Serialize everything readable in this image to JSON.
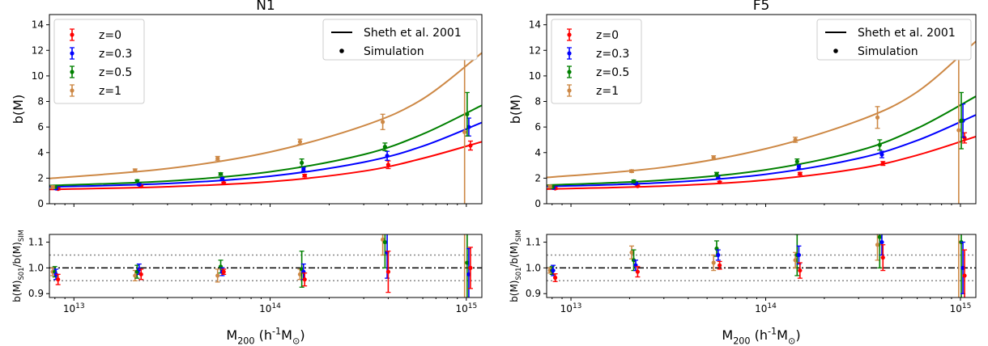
{
  "chart_data": [
    {
      "type": "scatter",
      "title": "N1",
      "xlabel": "M$_{200}$ (h$^{-1}$M$_\\odot$)",
      "top": {
        "ylabel": "b(M)",
        "ylim": [
          0,
          14.8
        ],
        "yticks": [
          "0",
          "2",
          "4",
          "6",
          "8",
          "10",
          "12",
          "14"
        ],
        "legend_left": [
          "z=0",
          "z=0.3",
          "z=0.5",
          "z=1"
        ],
        "legend_right": [
          "Sheth et al. 2001",
          "Simulation"
        ],
        "series": [
          {
            "name": "z=0",
            "color": "#ff0000",
            "points": [
              [
                8300000000000.0,
                1.16,
                0.08
              ],
              [
                22000000000000.0,
                1.36,
                0.07
              ],
              [
                58000000000000.0,
                1.62,
                0.07
              ],
              [
                150000000000000.0,
                2.2,
                0.1
              ],
              [
                400000000000000.0,
                3.05,
                0.3
              ],
              [
                1050000000000000.0,
                4.55,
                0.35
              ]
            ],
            "curve": [
              [
                7500000000000.0,
                1.12
              ],
              [
                30000000000000.0,
                1.33
              ],
              [
                100000000000000.0,
                1.72
              ],
              [
                300000000000000.0,
                2.55
              ],
              [
                600000000000000.0,
                3.55
              ],
              [
                1200000000000000.0,
                4.85
              ]
            ]
          },
          {
            "name": "z=0.3",
            "color": "#0000ff",
            "points": [
              [
                8100000000000.0,
                1.2,
                0.08
              ],
              [
                21500000000000.0,
                1.5,
                0.07
              ],
              [
                57000000000000.0,
                1.95,
                0.08
              ],
              [
                148000000000000.0,
                2.7,
                0.15
              ],
              [
                395000000000000.0,
                3.75,
                0.35
              ],
              [
                1030000000000000.0,
                6.0,
                0.7
              ]
            ],
            "curve": [
              [
                7500000000000.0,
                1.32
              ],
              [
                30000000000000.0,
                1.58
              ],
              [
                100000000000000.0,
                2.15
              ],
              [
                300000000000000.0,
                3.25
              ],
              [
                600000000000000.0,
                4.5
              ],
              [
                1200000000000000.0,
                6.35
              ]
            ]
          },
          {
            "name": "z=0.5",
            "color": "#008000",
            "points": [
              [
                8000000000000.0,
                1.3,
                0.08
              ],
              [
                21000000000000.0,
                1.77,
                0.1
              ],
              [
                56000000000000.0,
                2.32,
                0.1
              ],
              [
                145000000000000.0,
                3.2,
                0.3
              ],
              [
                385000000000000.0,
                4.45,
                0.3
              ],
              [
                1010000000000000.0,
                7.0,
                1.7
              ]
            ],
            "curve": [
              [
                7500000000000.0,
                1.42
              ],
              [
                30000000000000.0,
                1.77
              ],
              [
                100000000000000.0,
                2.5
              ],
              [
                300000000000000.0,
                3.85
              ],
              [
                600000000000000.0,
                5.45
              ],
              [
                1200000000000000.0,
                7.7
              ]
            ]
          },
          {
            "name": "z=1",
            "color": "#cd8845",
            "points": [
              [
                7800000000000.0,
                1.3,
                0.1
              ],
              [
                20500000000000.0,
                2.6,
                0.12
              ],
              [
                54000000000000.0,
                3.55,
                0.15
              ],
              [
                142000000000000.0,
                4.85,
                0.2
              ],
              [
                375000000000000.0,
                6.4,
                0.6
              ],
              [
                980000000000000.0,
                5.6,
                6.8
              ]
            ],
            "curve": [
              [
                7500000000000.0,
                1.98
              ],
              [
                30000000000000.0,
                2.75
              ],
              [
                100000000000000.0,
                4.05
              ],
              [
                300000000000000.0,
                6.1
              ],
              [
                600000000000000.0,
                8.2
              ],
              [
                1200000000000000.0,
                11.8
              ]
            ]
          }
        ]
      },
      "bottom": {
        "ylabel": "b(M)$_{S01}$/b(M)$_{SIM}$",
        "ylim": [
          0.885,
          1.13
        ],
        "yticks": [
          "0.9",
          "1.0",
          "1.1"
        ],
        "refline": 1.0,
        "dotted": [
          0.95,
          1.05
        ],
        "series": [
          {
            "name": "z=0",
            "color": "#ff0000",
            "points": [
              [
                8300000000000.0,
                0.955,
                0.02
              ],
              [
                22000000000000.0,
                0.975,
                0.02
              ],
              [
                58000000000000.0,
                0.985,
                0.01
              ],
              [
                150000000000000.0,
                0.955,
                0.025
              ],
              [
                400000000000000.0,
                0.985,
                0.08
              ],
              [
                1050000000000000.0,
                1.0,
                0.08
              ]
            ]
          },
          {
            "name": "z=0.3",
            "color": "#0000ff",
            "points": [
              [
                8100000000000.0,
                0.975,
                0.02
              ],
              [
                21500000000000.0,
                0.995,
                0.02
              ],
              [
                57000000000000.0,
                0.985,
                0.015
              ],
              [
                148000000000000.0,
                0.985,
                0.03
              ],
              [
                395000000000000.0,
                1.06,
                0.1
              ],
              [
                1030000000000000.0,
                0.975,
                0.1
              ]
            ]
          },
          {
            "name": "z=0.5",
            "color": "#008000",
            "points": [
              [
                8000000000000.0,
                0.985,
                0.02
              ],
              [
                21000000000000.0,
                0.985,
                0.025
              ],
              [
                56000000000000.0,
                1.005,
                0.025
              ],
              [
                145000000000000.0,
                0.995,
                0.07
              ],
              [
                385000000000000.0,
                1.1,
                0.1
              ],
              [
                1010000000000000.0,
                1.02,
                0.2
              ]
            ]
          },
          {
            "name": "z=1",
            "color": "#cd8845",
            "points": [
              [
                7800000000000.0,
                0.985,
                0.015
              ],
              [
                20500000000000.0,
                0.97,
                0.02
              ],
              [
                54000000000000.0,
                0.97,
                0.025
              ],
              [
                142000000000000.0,
                0.975,
                0.02
              ],
              [
                375000000000000.0,
                1.11,
                0.06
              ],
              [
                980000000000000.0,
                1.2,
                0.35
              ]
            ]
          }
        ]
      },
      "xscale": "log",
      "xlim": [
        7500000000000.0,
        1200000000000000.0
      ],
      "xticks": [
        {
          "v": 10000000000000.0,
          "label": "10^13"
        },
        {
          "v": 100000000000000.0,
          "label": "10^14"
        },
        {
          "v": 1000000000000000.0,
          "label": "10^15"
        }
      ]
    },
    {
      "type": "scatter",
      "title": "F5",
      "xlabel": "M$_{200}$ (h$^{-1}$M$_\\odot$)",
      "top": {
        "ylabel": "b(M)",
        "ylim": [
          0,
          14.8
        ],
        "yticks": [
          "0",
          "2",
          "4",
          "6",
          "8",
          "10",
          "12",
          "14"
        ],
        "legend_left": [
          "z=0",
          "z=0.3",
          "z=0.5",
          "z=1"
        ],
        "legend_right": [
          "Sheth et al. 2001",
          "Simulation"
        ],
        "series": [
          {
            "name": "z=0",
            "color": "#ff0000",
            "points": [
              [
                8300000000000.0,
                1.2,
                0.08
              ],
              [
                22000000000000.0,
                1.38,
                0.07
              ],
              [
                58000000000000.0,
                1.68,
                0.07
              ],
              [
                150000000000000.0,
                2.35,
                0.1
              ],
              [
                400000000000000.0,
                3.15,
                0.15
              ],
              [
                1050000000000000.0,
                5.15,
                0.4
              ]
            ],
            "curve": [
              [
                7500000000000.0,
                1.15
              ],
              [
                30000000000000.0,
                1.38
              ],
              [
                100000000000000.0,
                1.85
              ],
              [
                300000000000000.0,
                2.75
              ],
              [
                600000000000000.0,
                3.8
              ],
              [
                1200000000000000.0,
                5.25
              ]
            ]
          },
          {
            "name": "z=0.3",
            "color": "#0000ff",
            "points": [
              [
                8100000000000.0,
                1.25,
                0.08
              ],
              [
                21500000000000.0,
                1.58,
                0.08
              ],
              [
                57000000000000.0,
                2.1,
                0.1
              ],
              [
                148000000000000.0,
                2.9,
                0.15
              ],
              [
                395000000000000.0,
                3.85,
                0.25
              ],
              [
                1030000000000000.0,
                6.5,
                1.3
              ]
            ],
            "curve": [
              [
                7500000000000.0,
                1.35
              ],
              [
                30000000000000.0,
                1.65
              ],
              [
                100000000000000.0,
                2.3
              ],
              [
                300000000000000.0,
                3.55
              ],
              [
                600000000000000.0,
                4.95
              ],
              [
                1200000000000000.0,
                6.95
              ]
            ]
          },
          {
            "name": "z=0.5",
            "color": "#008000",
            "points": [
              [
                8000000000000.0,
                1.3,
                0.08
              ],
              [
                21000000000000.0,
                1.75,
                0.1
              ],
              [
                56000000000000.0,
                2.3,
                0.15
              ],
              [
                145000000000000.0,
                3.3,
                0.2
              ],
              [
                385000000000000.0,
                4.6,
                0.4
              ],
              [
                1010000000000000.0,
                6.5,
                2.2
              ]
            ],
            "curve": [
              [
                7500000000000.0,
                1.45
              ],
              [
                30000000000000.0,
                1.85
              ],
              [
                100000000000000.0,
                2.65
              ],
              [
                300000000000000.0,
                4.15
              ],
              [
                600000000000000.0,
                5.9
              ],
              [
                1200000000000000.0,
                8.4
              ]
            ]
          },
          {
            "name": "z=1",
            "color": "#cd8845",
            "points": [
              [
                7800000000000.0,
                1.35,
                0.1
              ],
              [
                20500000000000.0,
                2.55,
                0.1
              ],
              [
                54000000000000.0,
                3.6,
                0.15
              ],
              [
                142000000000000.0,
                5.0,
                0.2
              ],
              [
                375000000000000.0,
                6.75,
                0.85
              ],
              [
                980000000000000.0,
                5.75,
                6.75
              ]
            ],
            "curve": [
              [
                7500000000000.0,
                2.05
              ],
              [
                30000000000000.0,
                2.85
              ],
              [
                100000000000000.0,
                4.3
              ],
              [
                300000000000000.0,
                6.5
              ],
              [
                600000000000000.0,
                8.75
              ],
              [
                1200000000000000.0,
                12.7
              ]
            ]
          }
        ]
      },
      "bottom": {
        "ylabel": "b(M)$_{S01}$/b(M)$_{SIM}$",
        "ylim": [
          0.885,
          1.13
        ],
        "yticks": [
          "0.9",
          "1.0",
          "1.1"
        ],
        "refline": 1.0,
        "dotted": [
          0.95,
          1.05
        ],
        "series": [
          {
            "name": "z=0",
            "color": "#ff0000",
            "points": [
              [
                8300000000000.0,
                0.962,
                0.015
              ],
              [
                22000000000000.0,
                0.985,
                0.02
              ],
              [
                58000000000000.0,
                1.01,
                0.015
              ],
              [
                150000000000000.0,
                0.99,
                0.03
              ],
              [
                400000000000000.0,
                1.04,
                0.05
              ],
              [
                1050000000000000.0,
                0.97,
                0.1
              ]
            ]
          },
          {
            "name": "z=0.3",
            "color": "#0000ff",
            "points": [
              [
                8100000000000.0,
                0.99,
                0.02
              ],
              [
                21500000000000.0,
                1.01,
                0.02
              ],
              [
                57000000000000.0,
                1.05,
                0.02
              ],
              [
                148000000000000.0,
                1.05,
                0.035
              ],
              [
                395000000000000.0,
                1.1,
                0.05
              ],
              [
                1030000000000000.0,
                1.0,
                0.1
              ]
            ]
          },
          {
            "name": "z=0.5",
            "color": "#008000",
            "points": [
              [
                8000000000000.0,
                0.99,
                0.015
              ],
              [
                21000000000000.0,
                1.03,
                0.04
              ],
              [
                56000000000000.0,
                1.075,
                0.03
              ],
              [
                145000000000000.0,
                1.05,
                0.08
              ],
              [
                385000000000000.0,
                1.12,
                0.12
              ],
              [
                1010000000000000.0,
                1.1,
                0.25
              ]
            ]
          },
          {
            "name": "z=1",
            "color": "#cd8845",
            "points": [
              [
                7800000000000.0,
                0.99,
                0.01
              ],
              [
                20500000000000.0,
                1.06,
                0.025
              ],
              [
                54000000000000.0,
                1.02,
                0.03
              ],
              [
                142000000000000.0,
                1.03,
                0.03
              ],
              [
                375000000000000.0,
                1.09,
                0.06
              ],
              [
                980000000000000.0,
                1.2,
                0.35
              ]
            ]
          }
        ]
      },
      "xscale": "log",
      "xlim": [
        7500000000000.0,
        1200000000000000.0
      ],
      "xticks": [
        {
          "v": 10000000000000.0,
          "label": "10^13"
        },
        {
          "v": 100000000000000.0,
          "label": "10^14"
        },
        {
          "v": 1000000000000000.0,
          "label": "10^15"
        }
      ]
    }
  ]
}
